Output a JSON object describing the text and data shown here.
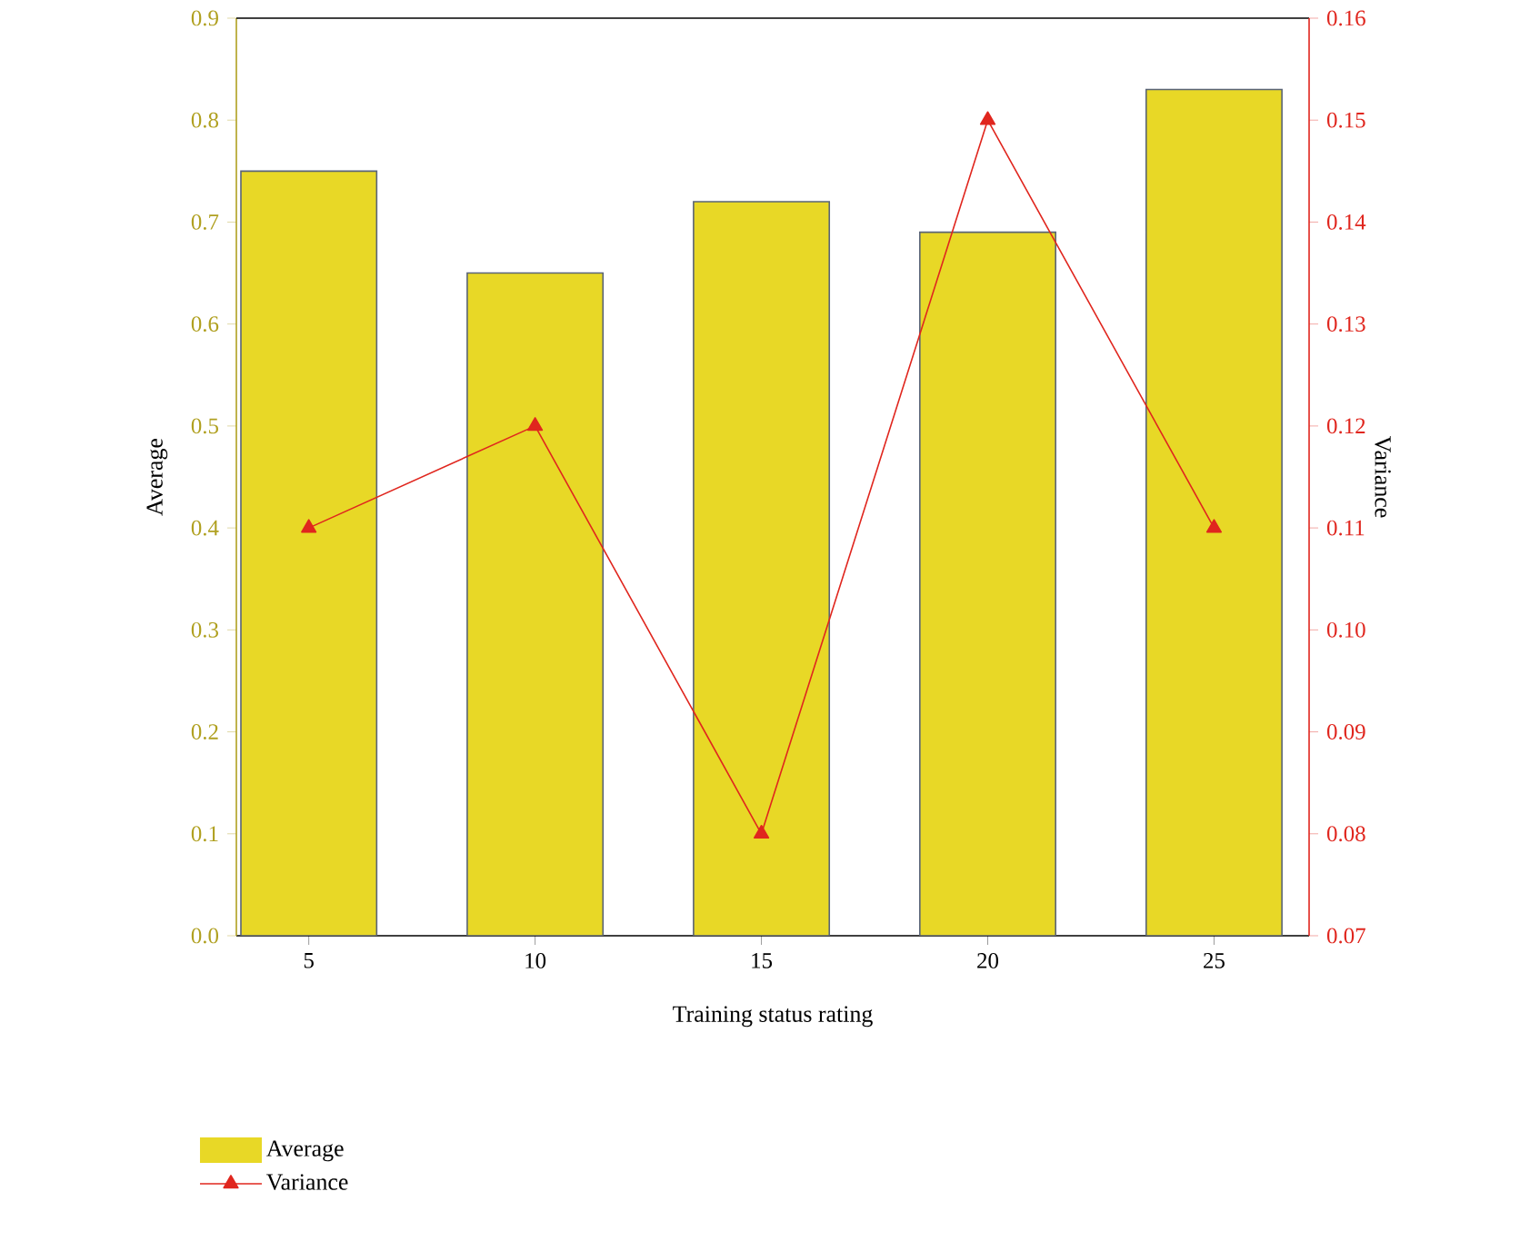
{
  "chart_data": {
    "type": "bar",
    "xlabel": "Training status rating",
    "ylabel": "Average",
    "y2label": "Variance",
    "categories": [
      "5",
      "10",
      "15",
      "20",
      "25"
    ],
    "series": [
      {
        "name": "Average",
        "color": "#e8d826",
        "values": [
          0.75,
          0.65,
          0.72,
          0.69,
          0.83
        ]
      },
      {
        "name": "Variance",
        "type": "line",
        "axis": "y2",
        "color": "#e0261e",
        "values": [
          0.11,
          0.12,
          0.08,
          0.15,
          0.11
        ]
      }
    ],
    "ylim": [
      0,
      0.9
    ],
    "yticks": [
      {
        "value": 0,
        "label": "0.0"
      },
      0.1,
      0.2,
      0.3,
      0.4,
      0.5,
      0.6,
      0.7,
      0.8,
      0.9
    ],
    "y2lim": [
      0.07,
      0.16
    ],
    "y2ticks": [
      0.07,
      0.08,
      0.09,
      {
        "value": 0.1,
        "label": "0.10"
      },
      0.11,
      0.12,
      0.13,
      0.14,
      0.15,
      0.16
    ],
    "marker": "triangle",
    "line_style": "solid",
    "grid": false,
    "legend": "bottom"
  }
}
